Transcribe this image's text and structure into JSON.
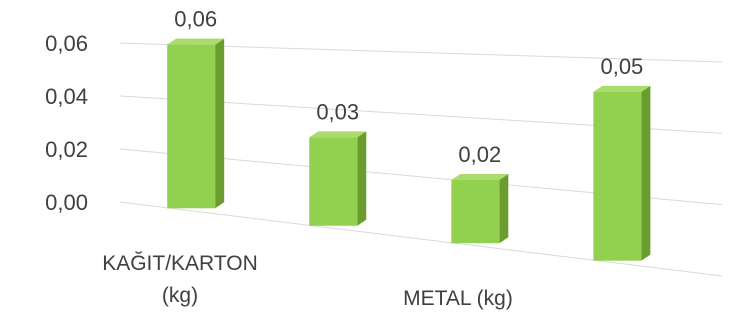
{
  "chart_data": {
    "type": "bar",
    "categories": [
      "KAĞIT/KARTON (kg)",
      "",
      "METAL (kg)",
      ""
    ],
    "category_label_lines": [
      [
        "KAĞIT/KARTON",
        "(kg)"
      ],
      [],
      [
        "METAL (kg)"
      ],
      []
    ],
    "values": [
      0.06,
      0.03,
      0.02,
      0.05
    ],
    "data_labels": [
      "0,06",
      "0,03",
      "0,02",
      "0,05"
    ],
    "y_ticks": [
      {
        "value": 0,
        "label": "0,00"
      },
      {
        "value": 0.02,
        "label": "0,02"
      },
      {
        "value": 0.04,
        "label": "0,04"
      },
      {
        "value": 0.06,
        "label": "0,06"
      }
    ],
    "ylim": [
      0,
      0.06
    ],
    "title": "",
    "xlabel": "",
    "ylabel": "",
    "grid": true,
    "style": "3d-column",
    "colors": {
      "front": "#92d050",
      "side": "#6a9d2e",
      "top": "#a9dc6b",
      "text": "#404040",
      "grid": "#d9d9d9"
    }
  }
}
